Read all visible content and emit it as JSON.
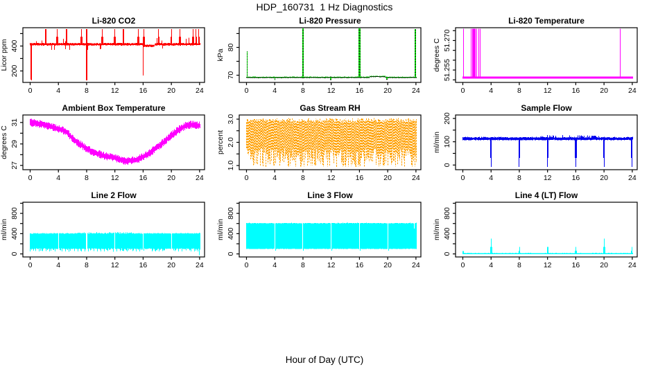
{
  "figure": {
    "title": "HDP_160731  1 Hz Diagnostics",
    "xlabel": "Hour of Day (UTC)",
    "background": "#FFFFFF",
    "axis_color": "#000000"
  },
  "chart_data": {
    "type": "line",
    "layout": "3x3 grid of time-series subplots, shared x axis 0-24 hours",
    "xlim": [
      -1.03,
      24.7
    ],
    "xticks": [
      0,
      4,
      8,
      12,
      16,
      20,
      24
    ],
    "plots": [
      {
        "name": "li820-co2",
        "kind": "co2",
        "title": "Li-820 CO2",
        "ylabel": "Licor ppm",
        "color": "#FF0000",
        "ylim": [
          108,
          547
        ],
        "yticks": [
          {
            "v": 200,
            "label": "200"
          },
          {
            "v": 300
          },
          {
            "v": 400,
            "label": "400"
          },
          {
            "v": 500
          }
        ],
        "band": [
          409,
          420
        ],
        "up_value": 535,
        "up_spikes": [
          2.2,
          3.85,
          5.15,
          7.25,
          8.0,
          10.2,
          12.0,
          13.2,
          15.3,
          16.1,
          18.2,
          20.0,
          21.2,
          23.1,
          23.5,
          23.9
        ],
        "down_spikes": [
          {
            "t": 0.12,
            "v": 118,
            "w": 0.1
          },
          {
            "t": 8.0,
            "v": 124,
            "w": 0.06
          },
          {
            "t": 16.0,
            "v": 152,
            "w": 0.06
          }
        ],
        "sag": {
          "from": 16.05,
          "to": 17.6,
          "drop": 13
        }
      },
      {
        "name": "li820-pressure",
        "kind": "pressure",
        "title": "Li-820 Pressure",
        "ylabel": "kPa",
        "color": "#00DD00",
        "overlay_dotted": true,
        "ylim": [
          67.4,
          87.1
        ],
        "yticks": [
          {
            "v": 70,
            "label": "70"
          },
          {
            "v": 75
          },
          {
            "v": 80,
            "label": "80"
          },
          {
            "v": 85
          }
        ],
        "band": [
          68.95,
          69.35
        ],
        "bump": {
          "from": 17.4,
          "to": 19.7,
          "rise": 0.3
        },
        "dips": [
          {
            "t": 4.0,
            "v": 68.3
          },
          {
            "t": 11.95,
            "v": 68.25
          },
          {
            "t": 19.9,
            "v": 68.35
          }
        ],
        "spikes": [
          {
            "t": 0.1,
            "v": 78.6,
            "w": 0.08
          },
          {
            "t": 8.0,
            "v": 86.9,
            "w": 0.08
          },
          {
            "t": 16.0,
            "v": 86.9,
            "w": 0.14
          },
          {
            "t": 23.93,
            "v": 86.6,
            "w": 0.08
          }
        ]
      },
      {
        "name": "li820-temperature",
        "kind": "tempspikes",
        "title": "Li-820 Temperature",
        "ylabel": "degrees C",
        "color": "#FF00FF",
        "ylim": [
          51.2487,
          51.2765
        ],
        "yticks": [
          {
            "v": 51.25
          },
          {
            "v": 51.255,
            "label": "51.255"
          },
          {
            "v": 51.26
          },
          {
            "v": 51.265
          },
          {
            "v": 51.27,
            "label": "51.270"
          },
          {
            "v": 51.275
          }
        ],
        "band": [
          51.2507,
          51.2517
        ],
        "spike_value": 51.276,
        "spikes": [
          {
            "t": 0.12,
            "w": 0.05
          },
          {
            "t": 1.15,
            "w": 0.05
          },
          {
            "t": 1.38,
            "w": 0.05
          },
          {
            "t": 1.55,
            "w": 0.14
          },
          {
            "t": 1.78,
            "w": 0.05
          },
          {
            "t": 1.98,
            "w": 0.05
          },
          {
            "t": 2.3,
            "w": 0.05
          },
          {
            "t": 2.5,
            "w": 0.05
          },
          {
            "t": 22.3,
            "w": 0.09
          }
        ]
      },
      {
        "name": "ambient-box-temperature",
        "kind": "ambient",
        "title": "Ambient Box Temperature",
        "ylabel": "degrees C",
        "color": "#FF00FF",
        "ylim": [
          26.6,
          31.7
        ],
        "yticks": [
          {
            "v": 27,
            "label": "27"
          },
          {
            "v": 28
          },
          {
            "v": 29,
            "label": "29"
          },
          {
            "v": 30
          },
          {
            "v": 31,
            "label": "31"
          }
        ],
        "noise": 0.27,
        "points": [
          [
            0,
            31.0
          ],
          [
            1,
            30.9
          ],
          [
            2,
            30.8
          ],
          [
            3,
            30.6
          ],
          [
            4,
            30.4
          ],
          [
            5,
            30.2
          ],
          [
            5.5,
            29.9
          ],
          [
            6,
            29.5
          ],
          [
            7,
            29.0
          ],
          [
            8,
            28.6
          ],
          [
            9,
            28.2
          ],
          [
            10,
            28.0
          ],
          [
            11,
            27.8
          ],
          [
            12,
            27.7
          ],
          [
            13,
            27.5
          ],
          [
            13.5,
            27.4
          ],
          [
            14,
            27.45
          ],
          [
            15,
            27.5
          ],
          [
            16,
            27.8
          ],
          [
            17,
            28.2
          ],
          [
            18,
            28.7
          ],
          [
            19,
            29.2
          ],
          [
            20,
            29.8
          ],
          [
            21,
            30.3
          ],
          [
            22,
            30.7
          ],
          [
            23,
            30.8
          ],
          [
            23.5,
            30.75
          ],
          [
            24,
            30.7
          ]
        ]
      },
      {
        "name": "gas-stream-rh",
        "kind": "rh",
        "title": "Gas Stream RH",
        "ylabel": "percent",
        "color": "#FFA000",
        "texture": true,
        "ylim": [
          0.82,
          3.18
        ],
        "yticks": [
          {
            "v": 1,
            "label": "1.0"
          },
          {
            "v": 1.5
          },
          {
            "v": 2,
            "label": "2.0"
          },
          {
            "v": 2.5
          },
          {
            "v": 3,
            "label": "3.0"
          }
        ],
        "top": [
          2.86,
          3.04
        ],
        "base": [
          1.1,
          1.75
        ],
        "deep": [
          0.93,
          1.1
        ],
        "deep_prob": 0.3
      },
      {
        "name": "sample-flow",
        "kind": "sampleflow",
        "title": "Sample Flow",
        "ylabel": "ml/min",
        "color": "#0000EE",
        "ylim": [
          -20,
          215
        ],
        "yticks": [
          {
            "v": 0,
            "label": "0"
          },
          {
            "v": 50
          },
          {
            "v": 100,
            "label": "100"
          },
          {
            "v": 150
          },
          {
            "v": 200,
            "label": "200"
          }
        ],
        "band": [
          106,
          117
        ],
        "drop_value": -8,
        "drops": [
          4,
          8,
          12,
          16,
          20,
          23.92
        ]
      },
      {
        "name": "line-2-flow",
        "kind": "line2",
        "title": "Line 2 Flow",
        "ylabel": "ml/min",
        "color": "#00FFFF",
        "ylim": [
          -60,
          1020
        ],
        "yticks": [
          {
            "v": 0,
            "label": "0"
          },
          {
            "v": 200
          },
          {
            "v": 400,
            "label": "400"
          },
          {
            "v": 600
          },
          {
            "v": 800,
            "label": "800"
          },
          {
            "v": 1000
          }
        ],
        "band": [
          95,
          405
        ],
        "tooth_period": 0.25,
        "tooth_value": 45,
        "gaps": [
          4,
          8,
          12,
          16,
          20
        ],
        "end": {
          "t": 23.93,
          "lo": -25,
          "hi": 420
        }
      },
      {
        "name": "line-3-flow",
        "kind": "line3",
        "title": "Line 3 Flow",
        "ylabel": "ml/min",
        "color": "#00FFFF",
        "ylim": [
          -60,
          1020
        ],
        "yticks": [
          {
            "v": 0,
            "label": "0"
          },
          {
            "v": 200
          },
          {
            "v": 400,
            "label": "400"
          },
          {
            "v": 600
          },
          {
            "v": 800,
            "label": "800"
          },
          {
            "v": 1000
          }
        ],
        "band": [
          95,
          600
        ],
        "postgap_lo": 62,
        "gaps": [
          4,
          8,
          12,
          16,
          20
        ],
        "notch": {
          "t": 23.8,
          "hi": 500
        }
      },
      {
        "name": "line-4-lt-flow",
        "kind": "line4",
        "title": "Line 4 (LT) Flow",
        "ylabel": "ml/min",
        "color": "#00FFFF",
        "ylim": [
          -60,
          1020
        ],
        "yticks": [
          {
            "v": 0,
            "label": "0"
          },
          {
            "v": 200
          },
          {
            "v": 400,
            "label": "400"
          },
          {
            "v": 600
          },
          {
            "v": 800,
            "label": "800"
          },
          {
            "v": 1000
          }
        ],
        "band": [
          -2,
          14
        ],
        "start_blip": 55,
        "spikes": [
          {
            "t": 4.03,
            "v": 300
          },
          {
            "t": 8.03,
            "v": 135
          },
          {
            "t": 12.03,
            "v": 300
          },
          {
            "t": 16.03,
            "v": 135
          },
          {
            "t": 20.03,
            "v": 305
          },
          {
            "t": 23.92,
            "v": 135
          }
        ]
      }
    ]
  }
}
